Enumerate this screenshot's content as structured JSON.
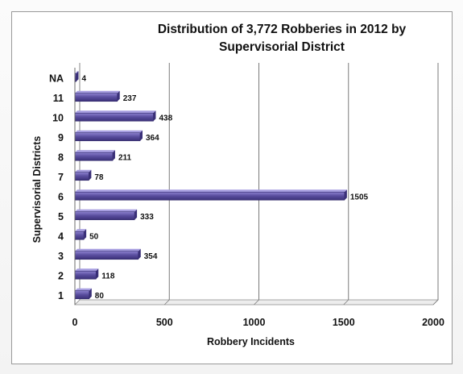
{
  "chart_data": {
    "type": "bar",
    "orientation": "horizontal",
    "title": "Distribution of 3,772 Robberies in 2012 by Supervisorial District",
    "xlabel": "Robbery Incidents",
    "ylabel": "Supervisorial Districts",
    "xlim": [
      0,
      2000
    ],
    "xticks": [
      "0",
      "500",
      "1000",
      "1500",
      "2000"
    ],
    "categories": [
      "1",
      "2",
      "3",
      "4",
      "5",
      "6",
      "7",
      "8",
      "9",
      "10",
      "11",
      "NA"
    ],
    "values": [
      80,
      118,
      354,
      50,
      333,
      1505,
      78,
      211,
      364,
      438,
      237,
      4
    ],
    "data_labels": [
      "80",
      "118",
      "354",
      "50",
      "333",
      "1505",
      "78",
      "211",
      "364",
      "438",
      "237",
      "4"
    ],
    "bar_color": "#5b4fa0",
    "grid": true,
    "legend": "none"
  }
}
